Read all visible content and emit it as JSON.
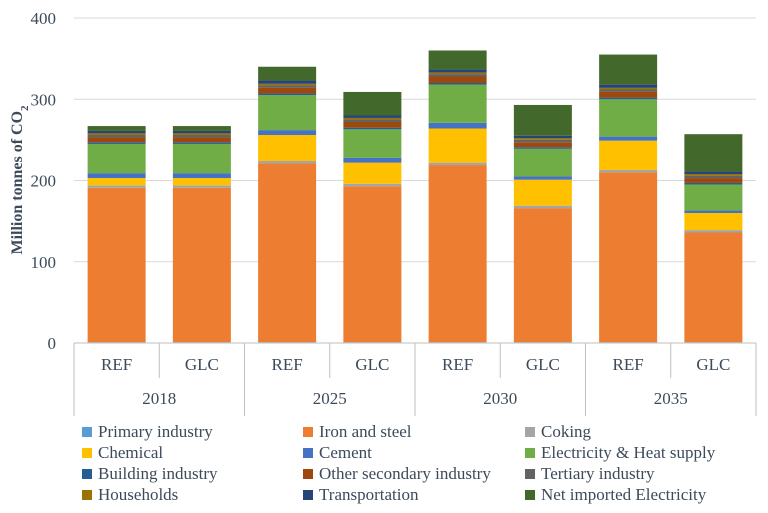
{
  "chart_data": {
    "type": "bar",
    "stacked": true,
    "ylabel": "Million tonnes of CO2",
    "ylim": [
      0,
      400
    ],
    "yticks": [
      0,
      100,
      200,
      300,
      400
    ],
    "groups": [
      "2018",
      "2025",
      "2030",
      "2035"
    ],
    "categories": [
      "REF",
      "GLC",
      "REF",
      "GLC",
      "REF",
      "GLC",
      "REF",
      "GLC"
    ],
    "series": [
      {
        "name": "Primary industry",
        "color": "#5b9bd5",
        "values": [
          1,
          1,
          1,
          1,
          1,
          1,
          1,
          1
        ]
      },
      {
        "name": "Iron and steel",
        "color": "#ed7d31",
        "values": [
          190,
          190,
          220,
          192,
          218,
          165,
          209,
          135
        ]
      },
      {
        "name": "Coking",
        "color": "#a5a5a5",
        "values": [
          3,
          3,
          3,
          3,
          3,
          3,
          3,
          3
        ]
      },
      {
        "name": "Chemical",
        "color": "#ffc000",
        "values": [
          9,
          9,
          32,
          26,
          42,
          32,
          36,
          21
        ]
      },
      {
        "name": "Cement",
        "color": "#4472c4",
        "values": [
          6,
          6,
          6,
          6,
          7,
          4,
          5,
          3
        ]
      },
      {
        "name": "Electricity & Heat supply",
        "color": "#70ad47",
        "values": [
          36,
          36,
          43,
          35,
          47,
          34,
          46,
          32
        ]
      },
      {
        "name": "Building industry",
        "color": "#255e91",
        "values": [
          2,
          2,
          2,
          2,
          2,
          2,
          2,
          2
        ]
      },
      {
        "name": "Other secondary industry",
        "color": "#9e480e",
        "values": [
          6,
          6,
          7,
          7,
          8,
          6,
          7,
          6
        ]
      },
      {
        "name": "Tertiary industry",
        "color": "#636363",
        "values": [
          3,
          3,
          3,
          3,
          3,
          3,
          3,
          3
        ]
      },
      {
        "name": "Households",
        "color": "#997300",
        "values": [
          2,
          2,
          2,
          2,
          2,
          2,
          2,
          2
        ]
      },
      {
        "name": "Transportation",
        "color": "#264478",
        "values": [
          3,
          3,
          4,
          3,
          4,
          3,
          4,
          3
        ]
      },
      {
        "name": "Net imported Electricity",
        "color": "#43682b",
        "values": [
          6,
          6,
          17,
          29,
          23,
          38,
          37,
          46
        ]
      }
    ]
  }
}
